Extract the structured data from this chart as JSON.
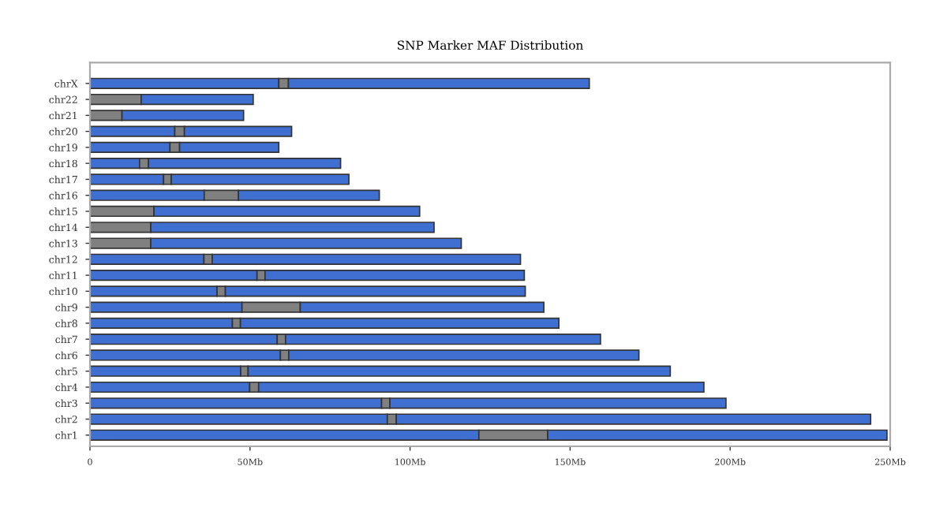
{
  "chart_data": {
    "type": "bar",
    "orientation": "horizontal",
    "stacked": true,
    "title": "SNP Marker MAF Distribution",
    "categories": [
      "chrX",
      "chr22",
      "chr21",
      "chr20",
      "chr19",
      "chr18",
      "chr17",
      "chr16",
      "chr15",
      "chr14",
      "chr13",
      "chr12",
      "chr11",
      "chr10",
      "chr9",
      "chr8",
      "chr7",
      "chr6",
      "chr5",
      "chr4",
      "chr3",
      "chr2",
      "chr1"
    ],
    "series": [
      {
        "color": "#3f6fd0",
        "values": [
          59,
          0,
          0,
          26.5,
          25,
          15.5,
          23,
          35.7,
          0,
          0,
          0,
          35.6,
          52.2,
          39.7,
          47.5,
          44.5,
          58.5,
          59.5,
          47.1,
          49.9,
          91.1,
          92.9,
          121.5
        ]
      },
      {
        "color": "#808080",
        "values": [
          3,
          16,
          10,
          3,
          3,
          2.8,
          2.4,
          10.7,
          20,
          19,
          19,
          2.6,
          2.5,
          2.6,
          18.2,
          2.5,
          2.6,
          2.6,
          2.3,
          2.8,
          2.6,
          2.8,
          21.5
        ]
      },
      {
        "color": "#3f6fd0",
        "values": [
          94,
          35,
          38,
          33.5,
          31,
          60,
          55.5,
          44,
          83,
          88.5,
          97,
          96.3,
          81,
          93.7,
          76.1,
          99.5,
          98.4,
          109.4,
          131.9,
          139.1,
          105,
          148.2,
          106
        ]
      }
    ],
    "xlim": [
      0,
      250
    ],
    "xticks": [
      0,
      {
        "value": 50,
        "label": "50Mb"
      },
      {
        "value": 100,
        "label": "100Mb"
      },
      {
        "value": 150,
        "label": "150Mb"
      },
      {
        "value": 200,
        "label": "200Mb"
      },
      {
        "value": 250,
        "label": "250Mb"
      }
    ]
  }
}
